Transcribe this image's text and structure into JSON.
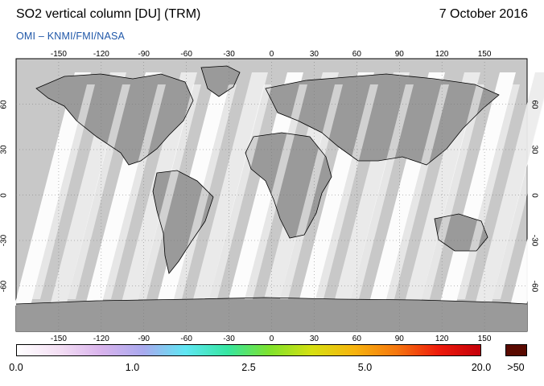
{
  "header": {
    "title": "SO2 vertical column [DU] (TRM)",
    "date": "7 October 2016",
    "credit": "OMI  –  KNMI/FMI/NASA"
  },
  "map": {
    "projection": "equirectangular",
    "lon_ticks_top": [
      "-150",
      "-120",
      "-90",
      "-60",
      "-30",
      "0",
      "30",
      "60",
      "90",
      "120",
      "150"
    ],
    "lon_ticks_bottom": [
      "-150",
      "-120",
      "-90",
      "-60",
      "-30",
      "0",
      "30",
      "60",
      "90",
      "120",
      "150"
    ],
    "lat_ticks": [
      "60",
      "30",
      "0",
      "-30",
      "-60"
    ],
    "colors": {
      "no_data": "#c8c8c8",
      "land_mask": "#9a9a9a",
      "coastline": "#000000",
      "low_values": "#ffffff"
    }
  },
  "colorbar": {
    "labels": [
      "0.0",
      "1.0",
      "2.5",
      "5.0",
      "20.0"
    ],
    "overflow_label": ">50",
    "overflow_color": "#5a0a00",
    "gradient": [
      "#ffffff",
      "#f4dff4",
      "#d9b3ec",
      "#a9a9ee",
      "#5fe6f3",
      "#36e6a1",
      "#7fe22c",
      "#d6e011",
      "#f7b40e",
      "#f5770e",
      "#ee1b0b",
      "#c4000a"
    ]
  }
}
